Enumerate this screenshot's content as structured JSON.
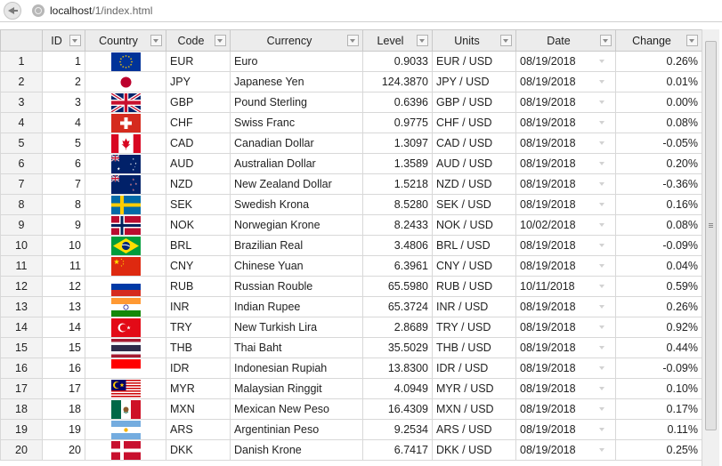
{
  "browser": {
    "url_host": "localhost",
    "url_path": "/1/index.html"
  },
  "columns": {
    "id": "ID",
    "country": "Country",
    "code": "Code",
    "currency": "Currency",
    "level": "Level",
    "units": "Units",
    "date": "Date",
    "change": "Change"
  },
  "rows": [
    {
      "n": "1",
      "id": "1",
      "flag": "eu",
      "code": "EUR",
      "currency": "Euro",
      "level": "0.9033",
      "units": "EUR / USD",
      "date": "08/19/2018",
      "change": "0.26%"
    },
    {
      "n": "2",
      "id": "2",
      "flag": "jp",
      "code": "JPY",
      "currency": "Japanese Yen",
      "level": "124.3870",
      "units": "JPY / USD",
      "date": "08/19/2018",
      "change": "0.01%"
    },
    {
      "n": "3",
      "id": "3",
      "flag": "gb",
      "code": "GBP",
      "currency": "Pound Sterling",
      "level": "0.6396",
      "units": "GBP / USD",
      "date": "08/19/2018",
      "change": "0.00%"
    },
    {
      "n": "4",
      "id": "4",
      "flag": "ch",
      "code": "CHF",
      "currency": "Swiss Franc",
      "level": "0.9775",
      "units": "CHF / USD",
      "date": "08/19/2018",
      "change": "0.08%"
    },
    {
      "n": "5",
      "id": "5",
      "flag": "ca",
      "code": "CAD",
      "currency": "Canadian Dollar",
      "level": "1.3097",
      "units": "CAD / USD",
      "date": "08/19/2018",
      "change": "-0.05%"
    },
    {
      "n": "6",
      "id": "6",
      "flag": "au",
      "code": "AUD",
      "currency": "Australian Dollar",
      "level": "1.3589",
      "units": "AUD / USD",
      "date": "08/19/2018",
      "change": "0.20%"
    },
    {
      "n": "7",
      "id": "7",
      "flag": "nz",
      "code": "NZD",
      "currency": "New Zealand Dollar",
      "level": "1.5218",
      "units": "NZD / USD",
      "date": "08/19/2018",
      "change": "-0.36%"
    },
    {
      "n": "8",
      "id": "8",
      "flag": "se",
      "code": "SEK",
      "currency": "Swedish Krona",
      "level": "8.5280",
      "units": "SEK / USD",
      "date": "08/19/2018",
      "change": "0.16%"
    },
    {
      "n": "9",
      "id": "9",
      "flag": "no",
      "code": "NOK",
      "currency": "Norwegian Krone",
      "level": "8.2433",
      "units": "NOK / USD",
      "date": "10/02/2018",
      "change": "0.08%"
    },
    {
      "n": "10",
      "id": "10",
      "flag": "br",
      "code": "BRL",
      "currency": "Brazilian Real",
      "level": "3.4806",
      "units": "BRL / USD",
      "date": "08/19/2018",
      "change": "-0.09%"
    },
    {
      "n": "11",
      "id": "11",
      "flag": "cn",
      "code": "CNY",
      "currency": "Chinese Yuan",
      "level": "6.3961",
      "units": "CNY / USD",
      "date": "08/19/2018",
      "change": "0.04%"
    },
    {
      "n": "12",
      "id": "12",
      "flag": "ru",
      "code": "RUB",
      "currency": "Russian Rouble",
      "level": "65.5980",
      "units": "RUB / USD",
      "date": "10/11/2018",
      "change": "0.59%"
    },
    {
      "n": "13",
      "id": "13",
      "flag": "in",
      "code": "INR",
      "currency": "Indian Rupee",
      "level": "65.3724",
      "units": "INR / USD",
      "date": "08/19/2018",
      "change": "0.26%"
    },
    {
      "n": "14",
      "id": "14",
      "flag": "tr",
      "code": "TRY",
      "currency": "New Turkish Lira",
      "level": "2.8689",
      "units": "TRY / USD",
      "date": "08/19/2018",
      "change": "0.92%"
    },
    {
      "n": "15",
      "id": "15",
      "flag": "th",
      "code": "THB",
      "currency": "Thai Baht",
      "level": "35.5029",
      "units": "THB / USD",
      "date": "08/19/2018",
      "change": "0.44%"
    },
    {
      "n": "16",
      "id": "16",
      "flag": "id",
      "code": "IDR",
      "currency": "Indonesian Rupiah",
      "level": "13.8300",
      "units": "IDR / USD",
      "date": "08/19/2018",
      "change": "-0.09%"
    },
    {
      "n": "17",
      "id": "17",
      "flag": "my",
      "code": "MYR",
      "currency": "Malaysian Ringgit",
      "level": "4.0949",
      "units": "MYR / USD",
      "date": "08/19/2018",
      "change": "0.10%"
    },
    {
      "n": "18",
      "id": "18",
      "flag": "mx",
      "code": "MXN",
      "currency": "Mexican New Peso",
      "level": "16.4309",
      "units": "MXN / USD",
      "date": "08/19/2018",
      "change": "0.17%"
    },
    {
      "n": "19",
      "id": "19",
      "flag": "ar",
      "code": "ARS",
      "currency": "Argentinian Peso",
      "level": "9.2534",
      "units": "ARS / USD",
      "date": "08/19/2018",
      "change": "0.11%"
    },
    {
      "n": "20",
      "id": "20",
      "flag": "dk",
      "code": "DKK",
      "currency": "Danish Krone",
      "level": "6.7417",
      "units": "DKK / USD",
      "date": "08/19/2018",
      "change": "0.25%"
    }
  ]
}
